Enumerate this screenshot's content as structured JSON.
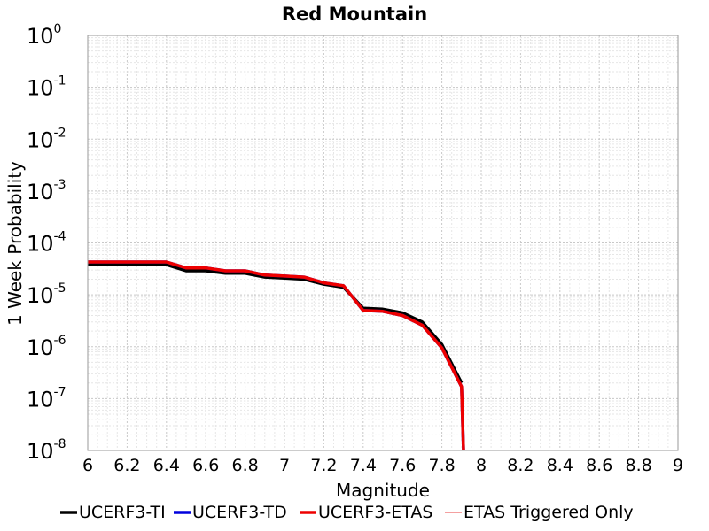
{
  "chart_data": {
    "type": "line",
    "title": "Red Mountain",
    "xlabel": "Magnitude",
    "ylabel": "1 Week Probability",
    "xlim": [
      6,
      9
    ],
    "ylim": [
      1e-08,
      1
    ],
    "yscale": "log",
    "grid": true,
    "legend_position": "bottom",
    "x_ticks": [
      "6",
      "6.2",
      "6.4",
      "6.6",
      "6.8",
      "7",
      "7.2",
      "7.4",
      "7.6",
      "7.8",
      "8",
      "8.2",
      "8.4",
      "8.6",
      "8.8",
      "9"
    ],
    "y_ticks": [
      {
        "base": "10",
        "exp": "0"
      },
      {
        "base": "10",
        "exp": "-1"
      },
      {
        "base": "10",
        "exp": "-2"
      },
      {
        "base": "10",
        "exp": "-3"
      },
      {
        "base": "10",
        "exp": "-4"
      },
      {
        "base": "10",
        "exp": "-5"
      },
      {
        "base": "10",
        "exp": "-6"
      },
      {
        "base": "10",
        "exp": "-7"
      },
      {
        "base": "10",
        "exp": "-8"
      }
    ],
    "series": [
      {
        "name": "UCERF3-TI",
        "color": "#000000",
        "x": [
          6.0,
          6.1,
          6.2,
          6.3,
          6.4,
          6.5,
          6.6,
          6.7,
          6.8,
          6.9,
          7.0,
          7.1,
          7.2,
          7.3,
          7.4,
          7.5,
          7.6,
          7.7,
          7.8,
          7.9
        ],
        "y": [
          3.8e-05,
          3.8e-05,
          3.8e-05,
          3.8e-05,
          3.8e-05,
          2.9e-05,
          2.9e-05,
          2.6e-05,
          2.6e-05,
          2.2e-05,
          2.1e-05,
          2e-05,
          1.6e-05,
          1.4e-05,
          5.5e-06,
          5.3e-06,
          4.5e-06,
          3e-06,
          1.1e-06,
          2e-07
        ]
      },
      {
        "name": "UCERF3-TD",
        "color": "#0000dd",
        "x": [
          6.0,
          6.1,
          6.2,
          6.3,
          6.4,
          6.5,
          6.6,
          6.7,
          6.8,
          6.9,
          7.0,
          7.1,
          7.2,
          7.3,
          7.4,
          7.5,
          7.6,
          7.7,
          7.8,
          7.9,
          7.91
        ],
        "y": [
          4.3e-05,
          4.3e-05,
          4.3e-05,
          4.3e-05,
          4.3e-05,
          3.3e-05,
          3.3e-05,
          2.9e-05,
          2.9e-05,
          2.4e-05,
          2.3e-05,
          2.2e-05,
          1.7e-05,
          1.5e-05,
          5e-06,
          4.8e-06,
          4e-06,
          2.6e-06,
          9.5e-07,
          1.7e-07,
          1e-08
        ]
      },
      {
        "name": "UCERF3-ETAS",
        "color": "#ee0000",
        "x": [
          6.0,
          6.1,
          6.2,
          6.3,
          6.4,
          6.5,
          6.6,
          6.7,
          6.8,
          6.9,
          7.0,
          7.1,
          7.2,
          7.3,
          7.4,
          7.5,
          7.6,
          7.7,
          7.8,
          7.9,
          7.91
        ],
        "y": [
          4.3e-05,
          4.3e-05,
          4.3e-05,
          4.3e-05,
          4.3e-05,
          3.3e-05,
          3.3e-05,
          2.9e-05,
          2.9e-05,
          2.4e-05,
          2.3e-05,
          2.2e-05,
          1.7e-05,
          1.5e-05,
          5e-06,
          4.8e-06,
          4e-06,
          2.6e-06,
          9.5e-07,
          1.7e-07,
          1e-08
        ]
      },
      {
        "name": "ETAS Triggered Only",
        "color": "#f08080",
        "x": [],
        "y": []
      }
    ]
  }
}
